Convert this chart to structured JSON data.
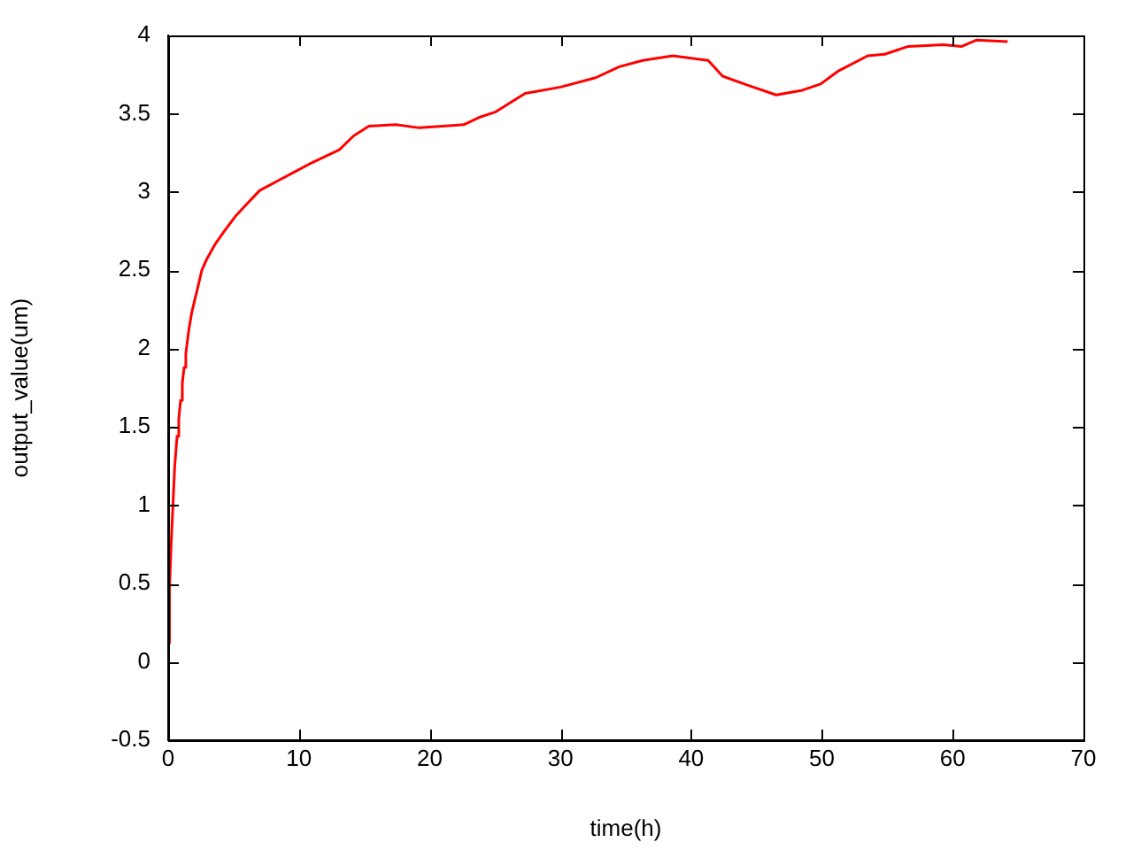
{
  "chart_data": {
    "type": "line",
    "xlabel": "time(h)",
    "ylabel": "output_value(um)",
    "xlim": [
      0,
      70
    ],
    "xticks": [
      0,
      10,
      20,
      30,
      40,
      50,
      60,
      70
    ],
    "ylim": [
      -0.5,
      4
    ],
    "yticks": [
      -0.5,
      0,
      0.5,
      1,
      1.5,
      2,
      2.5,
      3,
      3.5,
      4
    ],
    "grid": false,
    "legend": false,
    "marker": "none",
    "line_style": "solid",
    "series": [
      {
        "color": "#ff0000",
        "x": [
          0,
          0.1,
          0.23,
          0.36,
          0.5,
          0.68,
          0.81,
          0.95,
          1.08,
          1.22,
          1.35,
          1.58,
          1.8,
          2.03,
          2.26,
          2.57,
          2.94,
          3.61,
          4.29,
          5.19,
          6.09,
          7.0,
          8.35,
          9.7,
          11.06,
          13.09,
          14.2,
          15.35,
          17.4,
          19.2,
          21.0,
          22.6,
          23.9,
          25.0,
          27.3,
          30.0,
          32.7,
          34.5,
          36.3,
          38.6,
          41.3,
          42.4,
          44.4,
          46.5,
          48.5,
          49.9,
          51.2,
          53.5,
          54.8,
          56.6,
          59.3,
          60.7,
          61.8,
          64.2
        ],
        "values": [
          0.12,
          0.46,
          0.76,
          0.99,
          1.25,
          1.44,
          1.55,
          1.67,
          1.78,
          1.88,
          1.97,
          2.12,
          2.23,
          2.31,
          2.39,
          2.5,
          2.57,
          2.67,
          2.75,
          2.85,
          2.93,
          3.01,
          3.07,
          3.13,
          3.19,
          3.27,
          3.36,
          3.42,
          3.43,
          3.41,
          3.42,
          3.43,
          3.48,
          3.51,
          3.63,
          3.67,
          3.73,
          3.8,
          3.84,
          3.87,
          3.84,
          3.74,
          3.68,
          3.62,
          3.65,
          3.69,
          3.77,
          3.87,
          3.88,
          3.93,
          3.94,
          3.93,
          3.97,
          3.96
        ]
      }
    ]
  }
}
